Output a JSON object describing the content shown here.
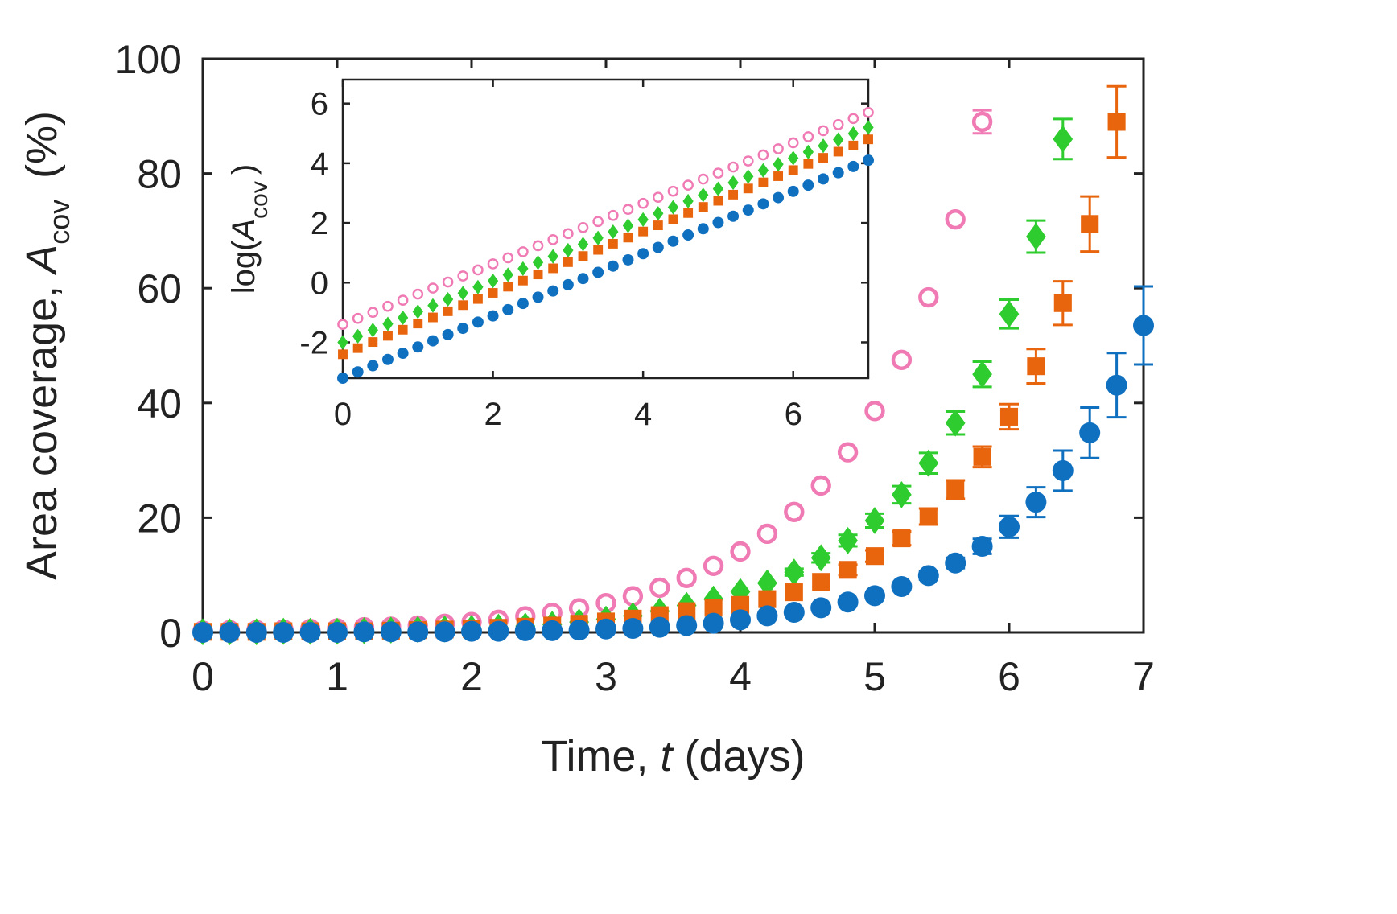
{
  "chart_data": [
    {
      "type": "scatter",
      "role": "main",
      "xlabel": {
        "prefix": "Time, ",
        "italic": "t",
        "suffix": " (days)"
      },
      "ylabel": {
        "prefix": "Area coverage, ",
        "italic": "A",
        "subscript": "cov",
        "suffix": " (%)"
      },
      "xlim": [
        0,
        7
      ],
      "ylim": [
        0,
        100
      ],
      "xticks": [
        "0",
        "1",
        "2",
        "3",
        "4",
        "5",
        "6",
        "7"
      ],
      "yticks": [
        "0",
        "20",
        "40",
        "60",
        "80",
        "100"
      ],
      "grid": false,
      "series": [
        {
          "name": "pink-open-circle",
          "color": "#f07ab4",
          "marker": "open-circle",
          "x": [
            0,
            0.2,
            0.4,
            0.6,
            0.8,
            1.0,
            1.2,
            1.4,
            1.6,
            1.8,
            2.0,
            2.2,
            2.4,
            2.6,
            2.8,
            3.0,
            3.2,
            3.4,
            3.6,
            3.8,
            4.0,
            4.2,
            4.4,
            4.6,
            4.8,
            5.0,
            5.2,
            5.4,
            5.6,
            5.8
          ],
          "y": [
            0.3,
            0.4,
            0.4,
            0.5,
            0.6,
            0.7,
            0.9,
            1.0,
            1.2,
            1.5,
            1.8,
            2.2,
            2.8,
            3.4,
            4.2,
            5.1,
            6.3,
            7.8,
            9.5,
            11.6,
            14.1,
            17.2,
            21.0,
            25.6,
            31.4,
            38.6,
            47.5,
            58.4,
            72.0,
            89.0
          ],
          "err": [
            0,
            0,
            0,
            0,
            0,
            0,
            0,
            0,
            0,
            0,
            0,
            0,
            0,
            0,
            0,
            0,
            0,
            0,
            0,
            0,
            0,
            0,
            0,
            0,
            0,
            0,
            0,
            0,
            0,
            2
          ]
        },
        {
          "name": "green-diamond",
          "color": "#2ecc2e",
          "marker": "diamond",
          "x": [
            0,
            0.2,
            0.4,
            0.6,
            0.8,
            1.0,
            1.2,
            1.4,
            1.6,
            1.8,
            2.0,
            2.2,
            2.4,
            2.6,
            2.8,
            3.0,
            3.2,
            3.4,
            3.6,
            3.8,
            4.0,
            4.2,
            4.4,
            4.6,
            4.8,
            5.0,
            5.2,
            5.4,
            5.6,
            5.8,
            6.0,
            6.2,
            6.4
          ],
          "y": [
            0.1,
            0.1,
            0.1,
            0.2,
            0.2,
            0.2,
            0.3,
            0.4,
            0.5,
            0.6,
            0.7,
            0.9,
            1.1,
            1.4,
            1.8,
            2.3,
            2.9,
            3.7,
            4.7,
            5.8,
            7.1,
            8.6,
            10.5,
            13.0,
            16.0,
            19.5,
            24.0,
            29.5,
            36.5,
            45.0,
            55.5,
            69.0,
            86.0
          ],
          "err": [
            0,
            0,
            0,
            0,
            0,
            0,
            0,
            0,
            0,
            0,
            0,
            0,
            0,
            0,
            0,
            0,
            0,
            0,
            0,
            0,
            0,
            0,
            0.6,
            0.8,
            1,
            1.2,
            1.5,
            1.8,
            2,
            2.2,
            2.5,
            2.8,
            3.5
          ]
        },
        {
          "name": "orange-square",
          "color": "#e8650e",
          "marker": "square",
          "x": [
            0,
            0.2,
            0.4,
            0.6,
            0.8,
            1.0,
            1.2,
            1.4,
            1.6,
            1.8,
            2.0,
            2.2,
            2.4,
            2.6,
            2.8,
            3.0,
            3.2,
            3.4,
            3.6,
            3.8,
            4.0,
            4.2,
            4.4,
            4.6,
            4.8,
            5.0,
            5.2,
            5.4,
            5.6,
            5.8,
            6.0,
            6.2,
            6.4,
            6.6,
            6.8
          ],
          "y": [
            0.1,
            0.1,
            0.1,
            0.2,
            0.2,
            0.2,
            0.2,
            0.3,
            0.4,
            0.5,
            0.6,
            0.8,
            1.0,
            1.2,
            1.5,
            1.9,
            2.4,
            3.0,
            3.7,
            4.3,
            4.8,
            5.8,
            7.0,
            8.8,
            10.9,
            13.3,
            16.4,
            20.2,
            24.9,
            30.6,
            37.6,
            46.4,
            57.4,
            71.2,
            89.0
          ],
          "err": [
            0,
            0,
            0,
            0,
            0,
            0,
            0,
            0,
            0,
            0,
            0,
            0,
            0,
            0,
            0,
            0,
            0,
            0,
            0,
            0,
            0,
            0,
            0,
            0,
            0.9,
            1,
            1.2,
            1.4,
            1.6,
            1.8,
            2.2,
            3,
            3.8,
            4.8,
            6.2
          ]
        },
        {
          "name": "blue-filled-circle",
          "color": "#1070c0",
          "marker": "filled-circle",
          "x": [
            0,
            0.2,
            0.4,
            0.6,
            0.8,
            1.0,
            1.2,
            1.4,
            1.6,
            1.8,
            2.0,
            2.2,
            2.4,
            2.6,
            2.8,
            3.0,
            3.2,
            3.4,
            3.6,
            3.8,
            4.0,
            4.2,
            4.4,
            4.6,
            4.8,
            5.0,
            5.2,
            5.4,
            5.6,
            5.8,
            6.0,
            6.2,
            6.4,
            6.6,
            6.8,
            7.0
          ],
          "y": [
            0.0,
            0.0,
            0.0,
            0.0,
            0.0,
            0.0,
            0.1,
            0.1,
            0.1,
            0.1,
            0.2,
            0.2,
            0.3,
            0.3,
            0.4,
            0.6,
            0.7,
            0.9,
            1.2,
            1.6,
            2.2,
            2.9,
            3.5,
            4.3,
            5.3,
            6.4,
            8.0,
            9.9,
            12.1,
            15.0,
            18.4,
            22.7,
            28.2,
            34.8,
            43.1,
            53.5
          ],
          "err": [
            0,
            0,
            0,
            0,
            0,
            0,
            0,
            0,
            0,
            0,
            0,
            0,
            0,
            0,
            0,
            0,
            0,
            0,
            0,
            0,
            0,
            0,
            0,
            0,
            0,
            0.5,
            0.6,
            0.7,
            0.9,
            1.3,
            1.9,
            2.6,
            3.5,
            4.4,
            5.6,
            6.8
          ]
        }
      ]
    },
    {
      "type": "scatter",
      "role": "inset",
      "ylabel": {
        "prefix": "log(",
        "italic": "A",
        "subscript": "cov",
        "suffix": ")"
      },
      "xlim": [
        0,
        7
      ],
      "ylim": [
        -3.2,
        6.8
      ],
      "xticks": [
        "0",
        "2",
        "4",
        "6"
      ],
      "yticks": [
        "-2",
        "0",
        "2",
        "4",
        "6"
      ],
      "grid": false,
      "series": [
        {
          "name": "pink-open-circle",
          "color": "#f07ab4",
          "marker": "open-circle",
          "start": -1.4,
          "end": 5.7
        },
        {
          "name": "green-diamond",
          "color": "#2ecc2e",
          "marker": "diamond",
          "start": -2.0,
          "end": 5.2
        },
        {
          "name": "orange-square",
          "color": "#e8650e",
          "marker": "square",
          "start": -2.4,
          "end": 4.8
        },
        {
          "name": "blue-filled-circle",
          "color": "#1070c0",
          "marker": "filled-circle",
          "start": -3.2,
          "end": 4.1
        }
      ]
    }
  ]
}
